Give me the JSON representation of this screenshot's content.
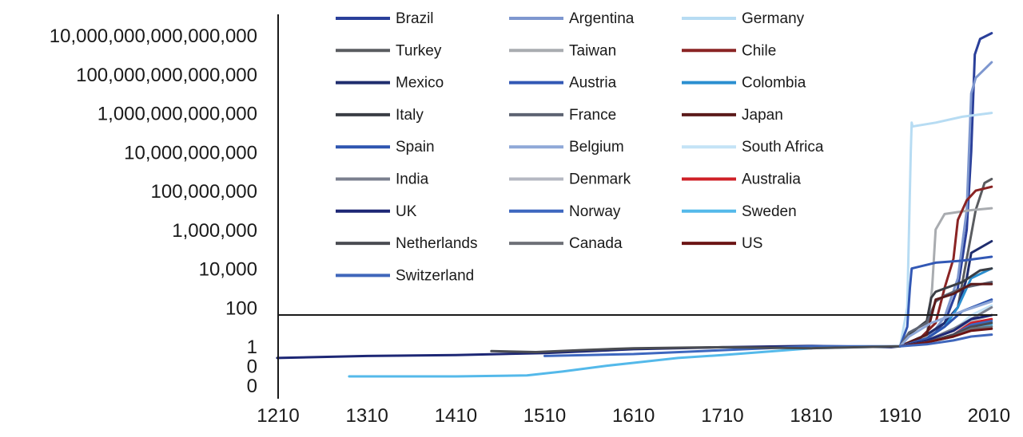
{
  "chart_data": {
    "type": "line",
    "title": "",
    "xlabel": "",
    "ylabel": "",
    "y_scale": "log10",
    "xlim": [
      1210,
      2015
    ],
    "ylim_exp": [
      -2,
      16
    ],
    "x_ticks": [
      1210,
      1310,
      1410,
      1510,
      1610,
      1710,
      1810,
      1910,
      2010
    ],
    "y_ticks": [
      {
        "exp": 16,
        "label": "10,000,000,000,000,000"
      },
      {
        "exp": 14,
        "label": "100,000,000,000,000"
      },
      {
        "exp": 12,
        "label": "1,000,000,000,000"
      },
      {
        "exp": 10,
        "label": "10,000,000,000"
      },
      {
        "exp": 8,
        "label": "100,000,000"
      },
      {
        "exp": 6,
        "label": "1,000,000"
      },
      {
        "exp": 4,
        "label": "10,000"
      },
      {
        "exp": 2,
        "label": "100"
      },
      {
        "exp": 0,
        "label": "1"
      },
      {
        "exp": -1,
        "label": "0"
      },
      {
        "exp": -2,
        "label": "0"
      }
    ],
    "legend_position": "top, inside plot, 3 columns",
    "series": [
      {
        "name": "Brazil",
        "color": "#2a3f9a",
        "points": [
          [
            1910,
            0
          ],
          [
            1940,
            0.4
          ],
          [
            1960,
            1.2
          ],
          [
            1975,
            3
          ],
          [
            1985,
            6
          ],
          [
            1990,
            10
          ],
          [
            1994,
            15
          ],
          [
            2000,
            15.8
          ],
          [
            2013,
            16.1
          ]
        ]
      },
      {
        "name": "Argentina",
        "color": "#7e97cf",
        "points": [
          [
            1910,
            0
          ],
          [
            1940,
            0.3
          ],
          [
            1960,
            1.5
          ],
          [
            1975,
            3.5
          ],
          [
            1985,
            7
          ],
          [
            1990,
            13
          ],
          [
            1995,
            13.8
          ],
          [
            2013,
            14.6
          ]
        ]
      },
      {
        "name": "Germany",
        "color": "#b7dcf3",
        "points": [
          [
            1910,
            0
          ],
          [
            1918,
            2
          ],
          [
            1920,
            6
          ],
          [
            1922,
            10
          ],
          [
            1923,
            11.5
          ],
          [
            1924,
            11.3
          ],
          [
            1950,
            11.5
          ],
          [
            1980,
            11.8
          ],
          [
            2013,
            12.0
          ]
        ]
      },
      {
        "name": "Turkey",
        "color": "#5a5c60",
        "points": [
          [
            1910,
            0
          ],
          [
            1940,
            0.6
          ],
          [
            1960,
            1.2
          ],
          [
            1975,
            2
          ],
          [
            1985,
            4.5
          ],
          [
            1995,
            7
          ],
          [
            2005,
            8.4
          ],
          [
            2013,
            8.6
          ]
        ]
      },
      {
        "name": "Taiwan",
        "color": "#a9acb0",
        "points": [
          [
            1910,
            0
          ],
          [
            1940,
            0.5
          ],
          [
            1946,
            3
          ],
          [
            1950,
            6
          ],
          [
            1960,
            6.8
          ],
          [
            1990,
            7.0
          ],
          [
            2013,
            7.1
          ]
        ]
      },
      {
        "name": "Chile",
        "color": "#8a2424",
        "points": [
          [
            1910,
            0
          ],
          [
            1930,
            0.3
          ],
          [
            1950,
            1.2
          ],
          [
            1960,
            3
          ],
          [
            1970,
            4.5
          ],
          [
            1975,
            6.5
          ],
          [
            1985,
            7.5
          ],
          [
            1995,
            8
          ],
          [
            2013,
            8.2
          ]
        ]
      },
      {
        "name": "Mexico",
        "color": "#1f2d6e",
        "points": [
          [
            1910,
            0
          ],
          [
            1940,
            0.6
          ],
          [
            1960,
            1.2
          ],
          [
            1975,
            2
          ],
          [
            1985,
            3.5
          ],
          [
            1990,
            4.8
          ],
          [
            2013,
            5.4
          ]
        ]
      },
      {
        "name": "Austria",
        "color": "#3258b5",
        "points": [
          [
            1910,
            0
          ],
          [
            1918,
            1
          ],
          [
            1921,
            3
          ],
          [
            1923,
            4
          ],
          [
            1950,
            4.3
          ],
          [
            1980,
            4.4
          ],
          [
            2013,
            4.6
          ]
        ]
      },
      {
        "name": "Colombia",
        "color": "#2b8fd0",
        "points": [
          [
            1910,
            0
          ],
          [
            1940,
            0.4
          ],
          [
            1960,
            1
          ],
          [
            1975,
            2
          ],
          [
            1990,
            3.5
          ],
          [
            2013,
            4.0
          ]
        ]
      },
      {
        "name": "Italy",
        "color": "#3a3d44",
        "points": [
          [
            1910,
            0
          ],
          [
            1920,
            0.6
          ],
          [
            1940,
            1.3
          ],
          [
            1945,
            2.5
          ],
          [
            1950,
            2.8
          ],
          [
            1980,
            3.3
          ],
          [
            2000,
            3.9
          ],
          [
            2013,
            4.0
          ]
        ]
      },
      {
        "name": "France",
        "color": "#5d6372",
        "points": [
          [
            1910,
            0
          ],
          [
            1920,
            0.7
          ],
          [
            1940,
            1.2
          ],
          [
            1950,
            2.3
          ],
          [
            1960,
            2.6
          ],
          [
            1980,
            3.0
          ],
          [
            2013,
            3.3
          ]
        ]
      },
      {
        "name": "Japan",
        "color": "#5b1a1a",
        "points": [
          [
            1910,
            0
          ],
          [
            1940,
            0.6
          ],
          [
            1945,
            1.5
          ],
          [
            1950,
            2.4
          ],
          [
            1970,
            2.7
          ],
          [
            1990,
            3.2
          ],
          [
            2013,
            3.2
          ]
        ]
      },
      {
        "name": "Spain",
        "color": "#2e55b0",
        "points": [
          [
            1910,
            0
          ],
          [
            1940,
            0.4
          ],
          [
            1960,
            1
          ],
          [
            1980,
            1.8
          ],
          [
            2013,
            2.4
          ]
        ]
      },
      {
        "name": "Belgium",
        "color": "#8fa8d8",
        "points": [
          [
            1910,
            0
          ],
          [
            1920,
            0.5
          ],
          [
            1945,
            1.2
          ],
          [
            1980,
            1.8
          ],
          [
            2013,
            2.3
          ]
        ]
      },
      {
        "name": "South Africa",
        "color": "#c4e3f6",
        "points": [
          [
            1910,
            0
          ],
          [
            1940,
            0.3
          ],
          [
            1970,
            0.8
          ],
          [
            1990,
            1.6
          ],
          [
            2013,
            2.1
          ]
        ]
      },
      {
        "name": "India",
        "color": "#7a7f8e",
        "points": [
          [
            1910,
            0
          ],
          [
            1940,
            0.3
          ],
          [
            1970,
            0.9
          ],
          [
            1990,
            1.4
          ],
          [
            2013,
            2.0
          ]
        ]
      },
      {
        "name": "Denmark",
        "color": "#b5b8c2",
        "points": [
          [
            1910,
            0
          ],
          [
            1940,
            0.3
          ],
          [
            1970,
            0.8
          ],
          [
            1990,
            1.3
          ],
          [
            2013,
            1.6
          ]
        ]
      },
      {
        "name": "Australia",
        "color": "#cf2027",
        "points": [
          [
            1910,
            0
          ],
          [
            1940,
            0.2
          ],
          [
            1970,
            0.6
          ],
          [
            1990,
            1.2
          ],
          [
            2013,
            1.4
          ]
        ]
      },
      {
        "name": "UK",
        "color": "#1d2775",
        "points": [
          [
            1209,
            -0.6
          ],
          [
            1260,
            -0.55
          ],
          [
            1310,
            -0.5
          ],
          [
            1410,
            -0.45
          ],
          [
            1510,
            -0.35
          ],
          [
            1610,
            -0.15
          ],
          [
            1710,
            -0.05
          ],
          [
            1810,
            0.02
          ],
          [
            1900,
            -0.05
          ],
          [
            1910,
            0
          ],
          [
            1940,
            0.3
          ],
          [
            1970,
            0.8
          ],
          [
            1990,
            1.4
          ],
          [
            2013,
            1.6
          ]
        ]
      },
      {
        "name": "Norway",
        "color": "#3d67bf",
        "points": [
          [
            1510,
            -0.5
          ],
          [
            1610,
            -0.4
          ],
          [
            1710,
            -0.2
          ],
          [
            1810,
            0
          ],
          [
            1910,
            0
          ],
          [
            1940,
            0.2
          ],
          [
            1970,
            0.6
          ],
          [
            1990,
            1.1
          ],
          [
            2013,
            1.3
          ]
        ]
      },
      {
        "name": "Sweden",
        "color": "#54b9ea",
        "points": [
          [
            1290,
            -1.55
          ],
          [
            1350,
            -1.55
          ],
          [
            1410,
            -1.55
          ],
          [
            1490,
            -1.5
          ],
          [
            1530,
            -1.3
          ],
          [
            1580,
            -1.0
          ],
          [
            1610,
            -0.85
          ],
          [
            1660,
            -0.6
          ],
          [
            1710,
            -0.45
          ],
          [
            1810,
            -0.1
          ],
          [
            1910,
            0
          ],
          [
            1940,
            0.2
          ],
          [
            1970,
            0.5
          ],
          [
            1990,
            0.9
          ],
          [
            2013,
            1.1
          ]
        ]
      },
      {
        "name": "Netherlands",
        "color": "#4a4c52",
        "points": [
          [
            1450,
            -0.25
          ],
          [
            1500,
            -0.3
          ],
          [
            1550,
            -0.2
          ],
          [
            1610,
            -0.1
          ],
          [
            1710,
            -0.05
          ],
          [
            1810,
            -0.1
          ],
          [
            1910,
            0
          ],
          [
            1940,
            0.2
          ],
          [
            1970,
            0.6
          ],
          [
            1990,
            1.0
          ],
          [
            2013,
            1.2
          ]
        ]
      },
      {
        "name": "Canada",
        "color": "#6e7077",
        "points": [
          [
            1910,
            0
          ],
          [
            1940,
            0.2
          ],
          [
            1970,
            0.5
          ],
          [
            1990,
            0.9
          ],
          [
            2013,
            1.0
          ]
        ]
      },
      {
        "name": "US",
        "color": "#6b1414",
        "points": [
          [
            1910,
            0
          ],
          [
            1940,
            0.2
          ],
          [
            1970,
            0.5
          ],
          [
            1990,
            0.8
          ],
          [
            2013,
            0.9
          ]
        ]
      },
      {
        "name": "Switzerland",
        "color": "#3f66bb",
        "points": [
          [
            1910,
            0
          ],
          [
            1940,
            0.1
          ],
          [
            1970,
            0.3
          ],
          [
            1990,
            0.5
          ],
          [
            2013,
            0.6
          ]
        ]
      }
    ]
  }
}
